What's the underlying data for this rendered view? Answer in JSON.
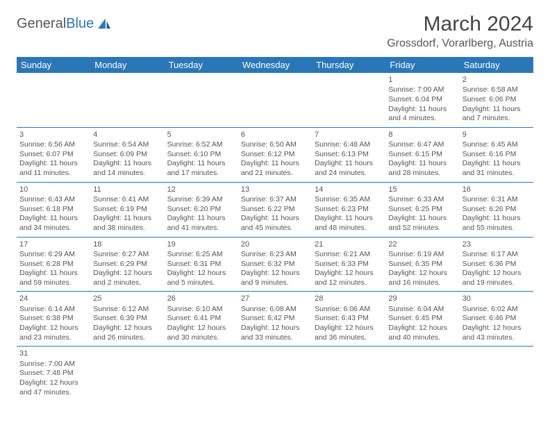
{
  "logo": {
    "part1": "General",
    "part2": "Blue"
  },
  "title": "March 2024",
  "location": "Grossdorf, Vorarlberg, Austria",
  "colors": {
    "header_bg": "#2a77b8",
    "header_fg": "#ffffff",
    "text": "#555555",
    "rule": "#2a77b8"
  },
  "days_of_week": [
    "Sunday",
    "Monday",
    "Tuesday",
    "Wednesday",
    "Thursday",
    "Friday",
    "Saturday"
  ],
  "weeks": [
    [
      null,
      null,
      null,
      null,
      null,
      {
        "n": "1",
        "sr": "Sunrise: 7:00 AM",
        "ss": "Sunset: 6:04 PM",
        "dl": "Daylight: 11 hours and 4 minutes."
      },
      {
        "n": "2",
        "sr": "Sunrise: 6:58 AM",
        "ss": "Sunset: 6:06 PM",
        "dl": "Daylight: 11 hours and 7 minutes."
      }
    ],
    [
      {
        "n": "3",
        "sr": "Sunrise: 6:56 AM",
        "ss": "Sunset: 6:07 PM",
        "dl": "Daylight: 11 hours and 11 minutes."
      },
      {
        "n": "4",
        "sr": "Sunrise: 6:54 AM",
        "ss": "Sunset: 6:09 PM",
        "dl": "Daylight: 11 hours and 14 minutes."
      },
      {
        "n": "5",
        "sr": "Sunrise: 6:52 AM",
        "ss": "Sunset: 6:10 PM",
        "dl": "Daylight: 11 hours and 17 minutes."
      },
      {
        "n": "6",
        "sr": "Sunrise: 6:50 AM",
        "ss": "Sunset: 6:12 PM",
        "dl": "Daylight: 11 hours and 21 minutes."
      },
      {
        "n": "7",
        "sr": "Sunrise: 6:48 AM",
        "ss": "Sunset: 6:13 PM",
        "dl": "Daylight: 11 hours and 24 minutes."
      },
      {
        "n": "8",
        "sr": "Sunrise: 6:47 AM",
        "ss": "Sunset: 6:15 PM",
        "dl": "Daylight: 11 hours and 28 minutes."
      },
      {
        "n": "9",
        "sr": "Sunrise: 6:45 AM",
        "ss": "Sunset: 6:16 PM",
        "dl": "Daylight: 11 hours and 31 minutes."
      }
    ],
    [
      {
        "n": "10",
        "sr": "Sunrise: 6:43 AM",
        "ss": "Sunset: 6:18 PM",
        "dl": "Daylight: 11 hours and 34 minutes."
      },
      {
        "n": "11",
        "sr": "Sunrise: 6:41 AM",
        "ss": "Sunset: 6:19 PM",
        "dl": "Daylight: 11 hours and 38 minutes."
      },
      {
        "n": "12",
        "sr": "Sunrise: 6:39 AM",
        "ss": "Sunset: 6:20 PM",
        "dl": "Daylight: 11 hours and 41 minutes."
      },
      {
        "n": "13",
        "sr": "Sunrise: 6:37 AM",
        "ss": "Sunset: 6:22 PM",
        "dl": "Daylight: 11 hours and 45 minutes."
      },
      {
        "n": "14",
        "sr": "Sunrise: 6:35 AM",
        "ss": "Sunset: 6:23 PM",
        "dl": "Daylight: 11 hours and 48 minutes."
      },
      {
        "n": "15",
        "sr": "Sunrise: 6:33 AM",
        "ss": "Sunset: 6:25 PM",
        "dl": "Daylight: 11 hours and 52 minutes."
      },
      {
        "n": "16",
        "sr": "Sunrise: 6:31 AM",
        "ss": "Sunset: 6:26 PM",
        "dl": "Daylight: 11 hours and 55 minutes."
      }
    ],
    [
      {
        "n": "17",
        "sr": "Sunrise: 6:29 AM",
        "ss": "Sunset: 6:28 PM",
        "dl": "Daylight: 11 hours and 59 minutes."
      },
      {
        "n": "18",
        "sr": "Sunrise: 6:27 AM",
        "ss": "Sunset: 6:29 PM",
        "dl": "Daylight: 12 hours and 2 minutes."
      },
      {
        "n": "19",
        "sr": "Sunrise: 6:25 AM",
        "ss": "Sunset: 6:31 PM",
        "dl": "Daylight: 12 hours and 5 minutes."
      },
      {
        "n": "20",
        "sr": "Sunrise: 6:23 AM",
        "ss": "Sunset: 6:32 PM",
        "dl": "Daylight: 12 hours and 9 minutes."
      },
      {
        "n": "21",
        "sr": "Sunrise: 6:21 AM",
        "ss": "Sunset: 6:33 PM",
        "dl": "Daylight: 12 hours and 12 minutes."
      },
      {
        "n": "22",
        "sr": "Sunrise: 6:19 AM",
        "ss": "Sunset: 6:35 PM",
        "dl": "Daylight: 12 hours and 16 minutes."
      },
      {
        "n": "23",
        "sr": "Sunrise: 6:17 AM",
        "ss": "Sunset: 6:36 PM",
        "dl": "Daylight: 12 hours and 19 minutes."
      }
    ],
    [
      {
        "n": "24",
        "sr": "Sunrise: 6:14 AM",
        "ss": "Sunset: 6:38 PM",
        "dl": "Daylight: 12 hours and 23 minutes."
      },
      {
        "n": "25",
        "sr": "Sunrise: 6:12 AM",
        "ss": "Sunset: 6:39 PM",
        "dl": "Daylight: 12 hours and 26 minutes."
      },
      {
        "n": "26",
        "sr": "Sunrise: 6:10 AM",
        "ss": "Sunset: 6:41 PM",
        "dl": "Daylight: 12 hours and 30 minutes."
      },
      {
        "n": "27",
        "sr": "Sunrise: 6:08 AM",
        "ss": "Sunset: 6:42 PM",
        "dl": "Daylight: 12 hours and 33 minutes."
      },
      {
        "n": "28",
        "sr": "Sunrise: 6:06 AM",
        "ss": "Sunset: 6:43 PM",
        "dl": "Daylight: 12 hours and 36 minutes."
      },
      {
        "n": "29",
        "sr": "Sunrise: 6:04 AM",
        "ss": "Sunset: 6:45 PM",
        "dl": "Daylight: 12 hours and 40 minutes."
      },
      {
        "n": "30",
        "sr": "Sunrise: 6:02 AM",
        "ss": "Sunset: 6:46 PM",
        "dl": "Daylight: 12 hours and 43 minutes."
      }
    ],
    [
      {
        "n": "31",
        "sr": "Sunrise: 7:00 AM",
        "ss": "Sunset: 7:48 PM",
        "dl": "Daylight: 12 hours and 47 minutes."
      },
      null,
      null,
      null,
      null,
      null,
      null
    ]
  ]
}
